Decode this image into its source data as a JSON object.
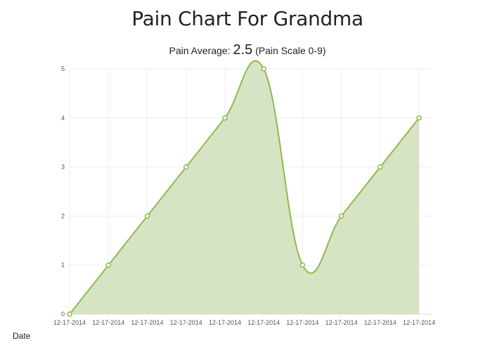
{
  "page": {
    "title": "Pain Chart For Grandma",
    "average_prefix": "Pain Average:",
    "average_value": "2.5",
    "average_suffix": "(Pain Scale 0-9)",
    "x_axis_label": "Date"
  },
  "chart_data": {
    "type": "area",
    "x": [
      "12-17-2014",
      "12-17-2014",
      "12-17-2014",
      "12-17-2014",
      "12-17-2014",
      "12-17-2014",
      "12-17-2014",
      "12-17-2014",
      "12-17-2014",
      "12-17-2014"
    ],
    "values": [
      0,
      1,
      2,
      3,
      4,
      5,
      1,
      2,
      3,
      4
    ],
    "ylim": [
      0,
      5
    ],
    "yticks": [
      0,
      1,
      2,
      3,
      4,
      5
    ],
    "xlabel": "Date",
    "ylabel": "",
    "grid": true,
    "colors": {
      "line": "#8dbb4c",
      "fill": "#d4e3c0",
      "grid": "#eeeeee",
      "point_fill": "#ffffff"
    }
  }
}
